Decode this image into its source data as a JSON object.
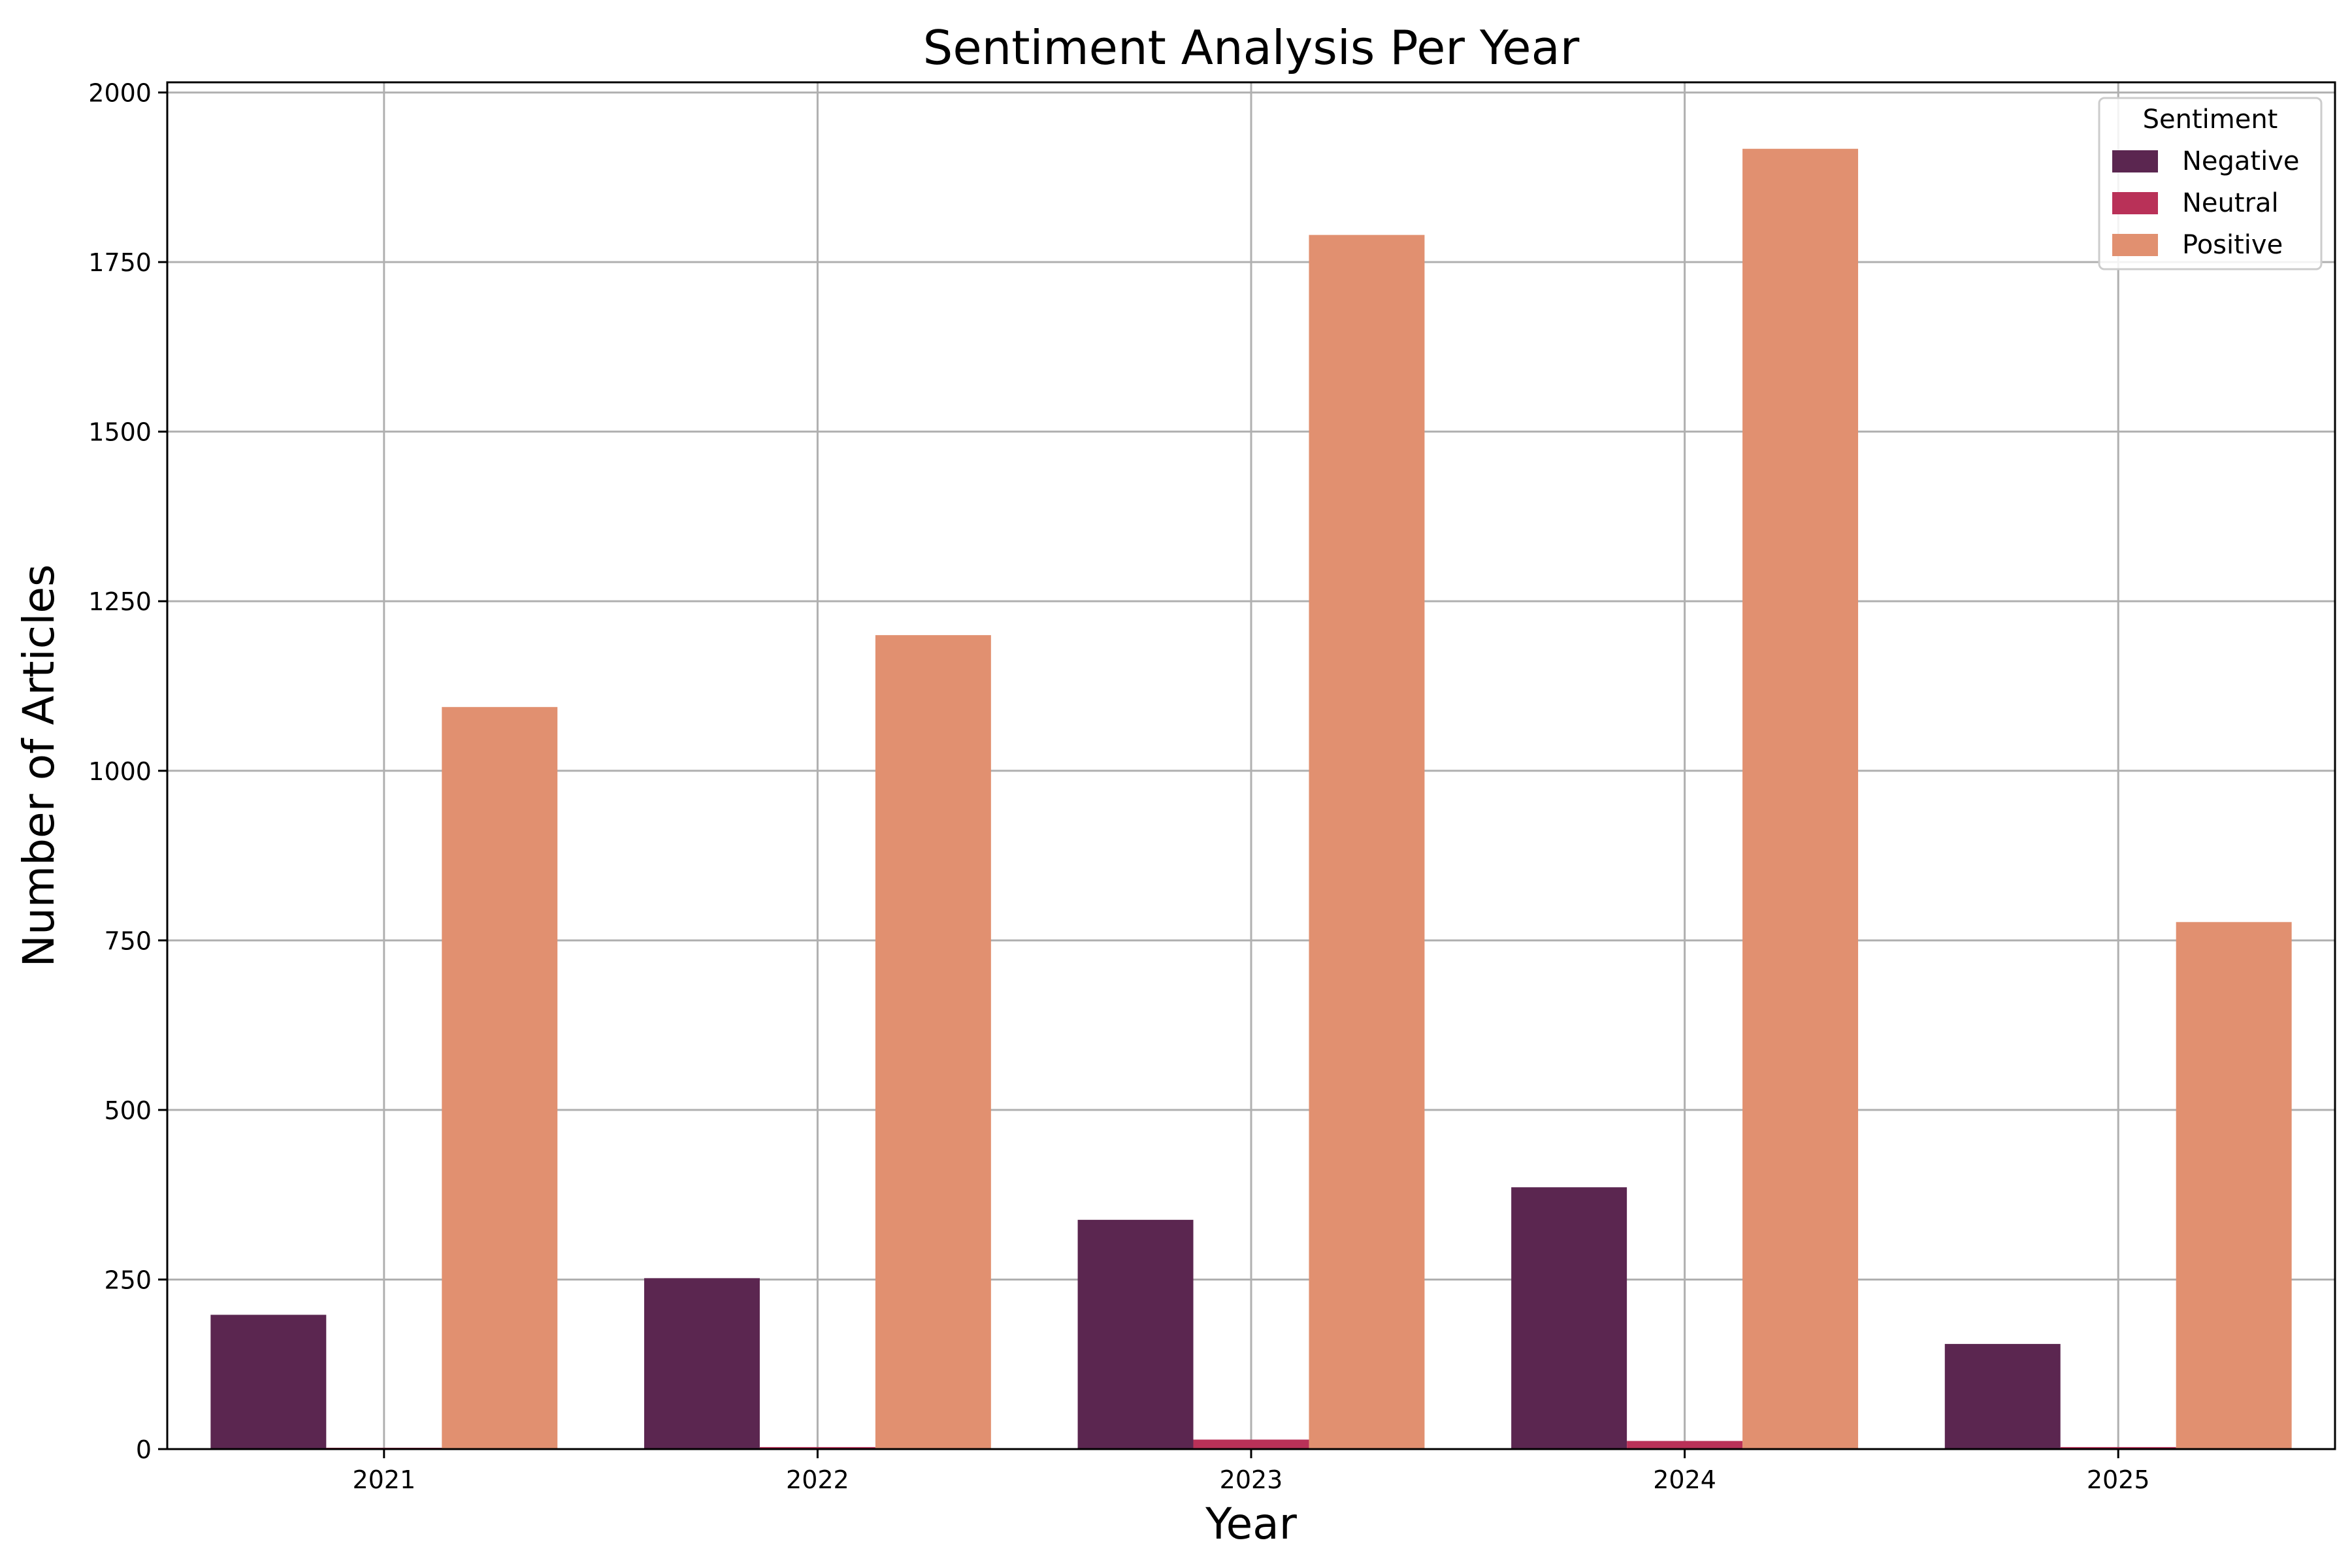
{
  "chart_data": {
    "type": "bar",
    "title": "Sentiment Analysis Per Year",
    "xlabel": "Year",
    "ylabel": "Number of Articles",
    "categories": [
      "2021",
      "2022",
      "2023",
      "2024",
      "2025"
    ],
    "series": [
      {
        "name": "Negative",
        "color": "#5b2650",
        "values": [
          198,
          252,
          338,
          386,
          155
        ]
      },
      {
        "name": "Neutral",
        "color": "#b93158",
        "values": [
          2,
          3,
          14,
          12,
          3
        ]
      },
      {
        "name": "Positive",
        "color": "#e19070",
        "values": [
          1094,
          1200,
          1790,
          1917,
          777
        ]
      }
    ],
    "ylim": [
      0,
      2015
    ],
    "yticks": [
      0,
      250,
      500,
      750,
      1000,
      1250,
      1500,
      1750,
      2000
    ],
    "grid": true,
    "legend": {
      "title": "Sentiment",
      "position": "top-right"
    }
  }
}
